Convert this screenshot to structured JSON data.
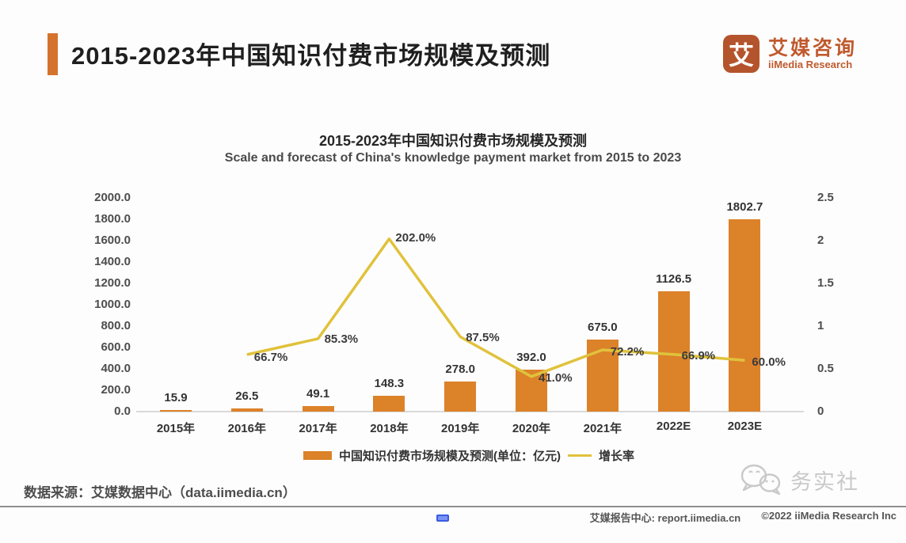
{
  "header": {
    "title": "2015-2023年中国知识付费市场规模及预测",
    "logo": {
      "icon_char": "艾",
      "name_cn": "艾媒咨询",
      "name_en": "iiMedia Research"
    }
  },
  "chart_data": {
    "type": "bar+line",
    "title": "2015-2023年中国知识付费市场规模及预测",
    "subtitle_en": "Scale and forecast of China's knowledge payment market from 2015 to 2023",
    "categories": [
      "2015年",
      "2016年",
      "2017年",
      "2018年",
      "2019年",
      "2020年",
      "2021年",
      "2022E",
      "2023E"
    ],
    "series": [
      {
        "name": "中国知识付费市场规模及预测(单位：亿元)",
        "type": "bar",
        "axis": "left",
        "values": [
          15.9,
          26.5,
          49.1,
          148.3,
          278.0,
          392.0,
          675.0,
          1126.5,
          1802.7
        ],
        "labels": [
          "15.9",
          "26.5",
          "49.1",
          "148.3",
          "278.0",
          "392.0",
          "675.0",
          "1126.5",
          "1802.7"
        ]
      },
      {
        "name": "增长率",
        "type": "line",
        "axis": "right",
        "values": [
          null,
          0.667,
          0.853,
          2.02,
          0.875,
          0.41,
          0.722,
          0.669,
          0.6
        ],
        "labels": [
          null,
          "66.7%",
          "85.3%",
          "202.0%",
          "87.5%",
          "41.0%",
          "72.2%",
          "66.9%",
          "60.0%"
        ]
      }
    ],
    "left_axis": {
      "min": 0,
      "max": 2000,
      "tick_labels": [
        "2000.0",
        "1800.0",
        "1600.0",
        "1400.0",
        "1200.0",
        "1000.0",
        "800.0",
        "600.0",
        "400.0",
        "200.0",
        "0.0"
      ]
    },
    "right_axis": {
      "min": 0,
      "max": 2.5,
      "tick_labels": [
        "2.5",
        "2",
        "1.5",
        "1",
        "0.5",
        "0"
      ]
    },
    "grid": false,
    "legend_position": "bottom"
  },
  "footer": {
    "source": "数据来源：艾媒数据中心（data.iimedia.cn）",
    "report_center": "艾媒报告中心: report.iimedia.cn",
    "copyright": "©2022  iiMedia Research Inc",
    "watermark": "务实社"
  },
  "colors": {
    "bar": "#DC8229",
    "line": "#E0C23C",
    "accent": "#D4732D",
    "logo": "#B4542C",
    "logoText": "#C05A2E",
    "axisLine": "#D9D9D9",
    "blue": "#5B7BF0"
  }
}
